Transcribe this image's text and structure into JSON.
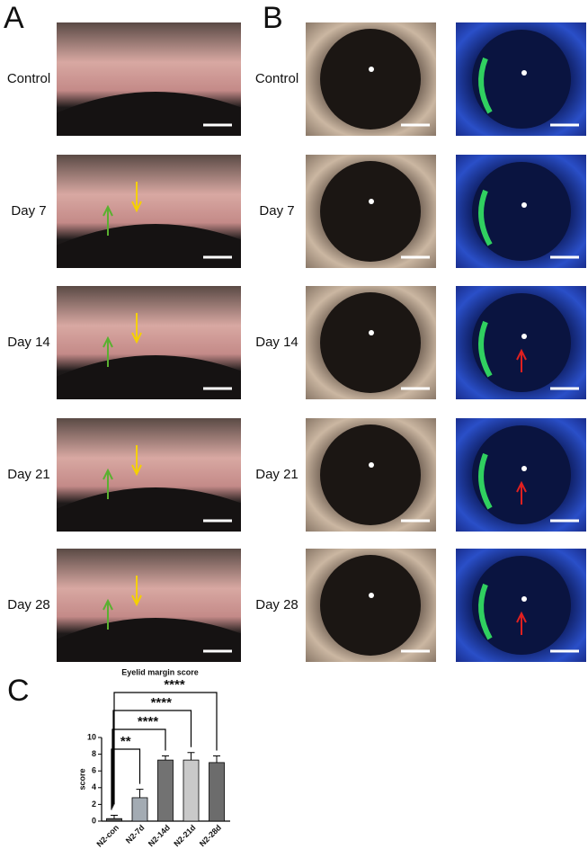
{
  "panel_labels": [
    "A",
    "B",
    "C"
  ],
  "rows_a": [
    "Control",
    "Day 7",
    "Day 14",
    "Day 21",
    "Day 28"
  ],
  "rows_b": [
    "Control",
    "Day 7",
    "Day 14",
    "Day 21",
    "Day 28"
  ],
  "chart_data": {
    "type": "bar",
    "title": "Eyelid margin score",
    "y_label": "score",
    "categories": [
      "N2-con",
      "N2-7d",
      "N2-14d",
      "N2-21d",
      "N2-28d"
    ],
    "values": [
      0.3,
      2.8,
      7.3,
      7.3,
      7.0
    ],
    "errors": [
      0.4,
      1.0,
      0.5,
      0.9,
      0.8
    ],
    "colors": [
      "#5a5a5a",
      "#a3abb3",
      "#727272",
      "#c9c9c9",
      "#6c6c6c"
    ],
    "significance": [
      "**",
      "****",
      "****",
      "****"
    ],
    "ylim": [
      0,
      10
    ],
    "yticks": [
      0,
      2,
      4,
      6,
      8,
      10
    ]
  }
}
